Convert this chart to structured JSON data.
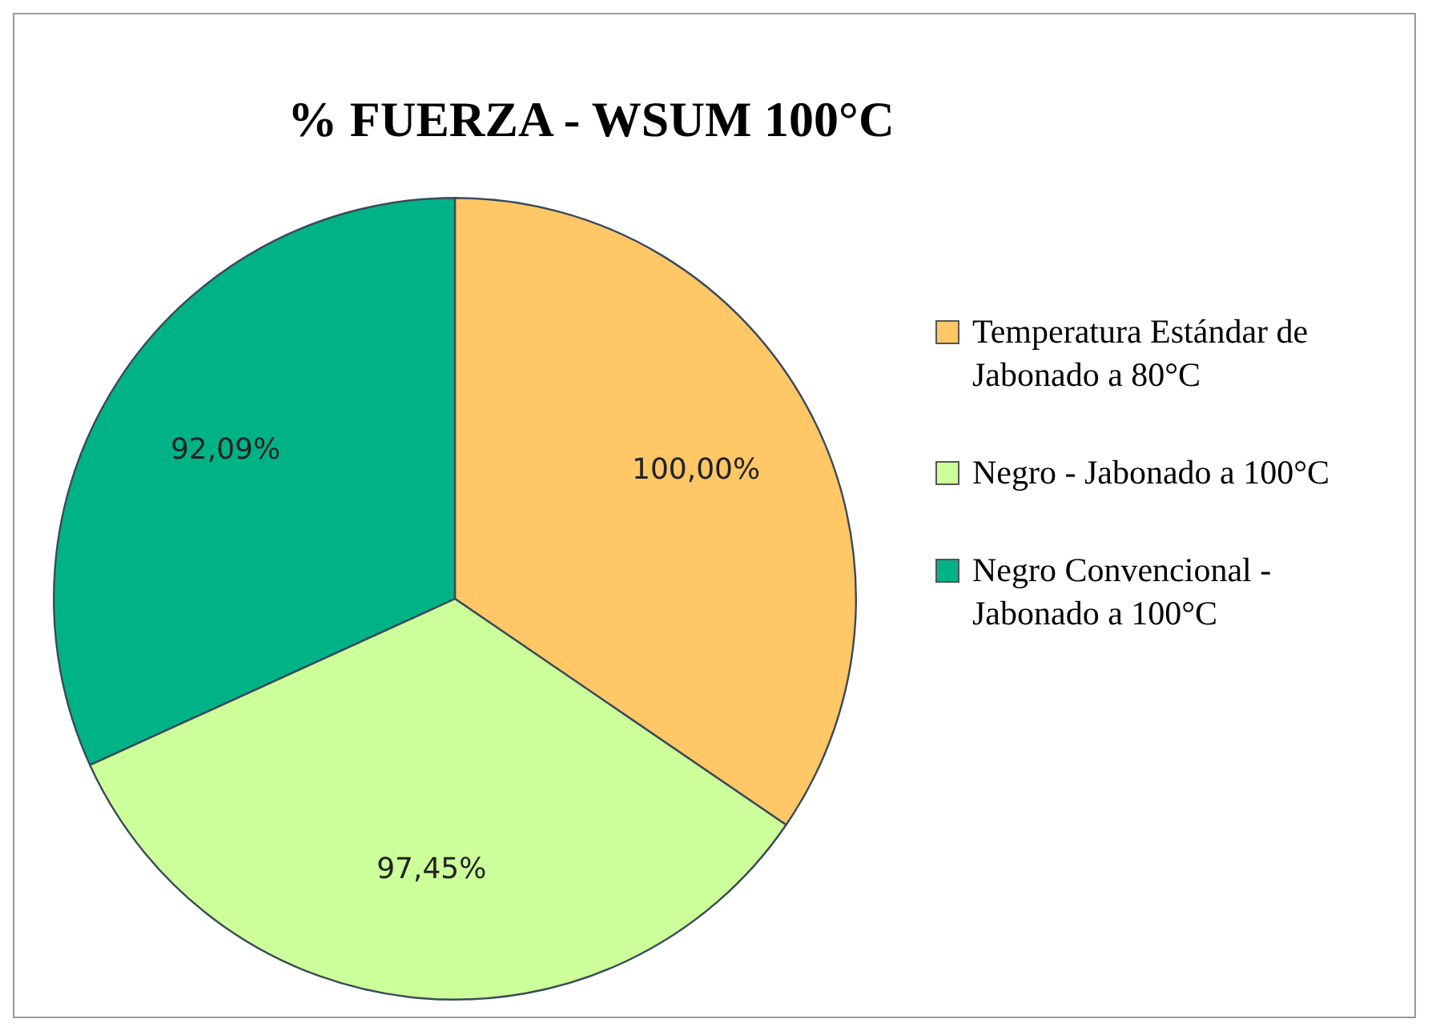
{
  "chart_data": {
    "type": "pie",
    "title": "% FUERZA - WSUM 100°C",
    "categories": [
      "Temperatura Estándar de Jabonado a 80°C",
      "Negro - Jabonado a 100°C",
      "Negro Convencional - Jabonado a 100°C"
    ],
    "values": [
      100,
      97.45,
      92.09
    ],
    "colors": [
      "#ffc766",
      "#ccff99",
      "#00b386"
    ],
    "value_labels": [
      "100,00%",
      "97,45%",
      "92,09%"
    ],
    "legend": "right"
  }
}
